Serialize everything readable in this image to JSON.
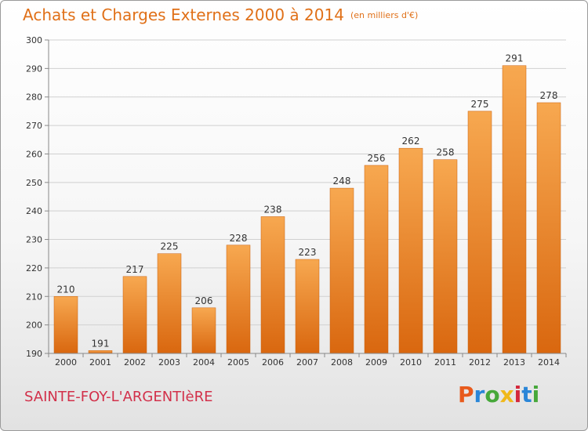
{
  "chart_data": {
    "type": "bar",
    "title": "Achats et Charges Externes 2000 à 2014",
    "unit": "(en milliers d'€)",
    "categories": [
      "2000",
      "2001",
      "2002",
      "2003",
      "2004",
      "2005",
      "2006",
      "2007",
      "2008",
      "2009",
      "2010",
      "2011",
      "2012",
      "2013",
      "2014"
    ],
    "values": [
      210,
      191,
      217,
      225,
      206,
      228,
      238,
      223,
      248,
      256,
      262,
      258,
      275,
      291,
      278
    ],
    "data_labels": [
      "210",
      "191",
      "217",
      "225",
      "206",
      "228",
      "238",
      "223",
      "248",
      "256",
      "262",
      "258",
      "275",
      "291",
      "278"
    ],
    "yticks": [
      "190",
      "200",
      "210",
      "220",
      "230",
      "240",
      "250",
      "260",
      "270",
      "280",
      "290",
      "300"
    ],
    "ylim": [
      190,
      300
    ],
    "grid": true,
    "bar_color": "#f07d1e"
  },
  "place_name": "SAINTE-FOY-L'ARGENTIèRE",
  "logo": {
    "letters": [
      "P",
      "r",
      "o",
      "x",
      "i",
      "t",
      "i"
    ]
  }
}
